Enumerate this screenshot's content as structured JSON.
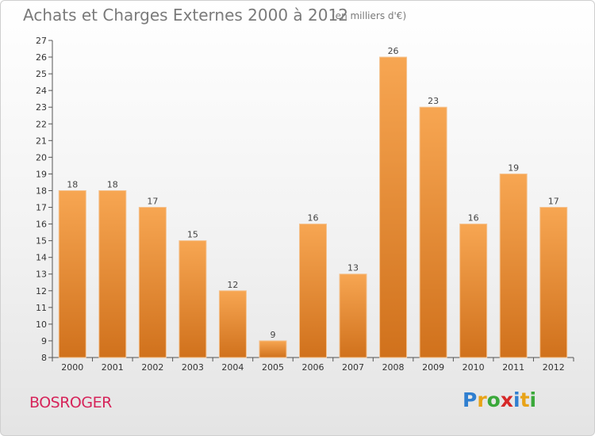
{
  "header": {
    "title": "Achats et Charges Externes 2000 à 2012",
    "unit": "(en milliers d'€)"
  },
  "commune": "BOSROGER",
  "logo": {
    "letters": [
      {
        "ch": "P",
        "color": "#2f7fd0"
      },
      {
        "ch": "r",
        "color": "#e8a317"
      },
      {
        "ch": "o",
        "color": "#3aa83a"
      },
      {
        "ch": "x",
        "color": "#d62828"
      },
      {
        "ch": "i",
        "color": "#2f7fd0"
      },
      {
        "ch": "t",
        "color": "#e8a317"
      },
      {
        "ch": "i",
        "color": "#3aa83a"
      }
    ]
  },
  "chart_data": {
    "type": "bar",
    "categories": [
      "2000",
      "2001",
      "2002",
      "2003",
      "2004",
      "2005",
      "2006",
      "2007",
      "2008",
      "2009",
      "2010",
      "2011",
      "2012"
    ],
    "values": [
      18,
      18,
      17,
      15,
      12,
      9,
      16,
      13,
      26,
      23,
      16,
      19,
      17
    ],
    "ylim": [
      8,
      27
    ],
    "yticks": [
      8,
      9,
      10,
      11,
      12,
      13,
      14,
      15,
      16,
      17,
      18,
      19,
      20,
      21,
      22,
      23,
      24,
      25,
      26,
      27
    ],
    "bar_color_top": "#f7a652",
    "bar_color_bottom": "#d0711c",
    "grid": false
  }
}
